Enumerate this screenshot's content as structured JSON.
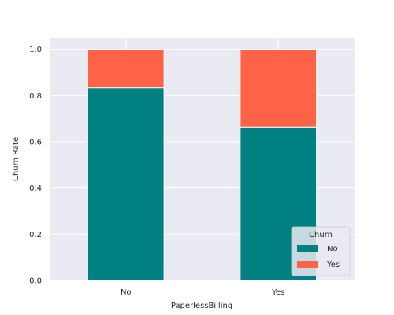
{
  "chart_data": {
    "type": "bar",
    "stacked": true,
    "categories": [
      "No",
      "Yes"
    ],
    "series": [
      {
        "name": "No",
        "values": [
          0.833,
          0.664
        ],
        "color": "#008080"
      },
      {
        "name": "Yes",
        "values": [
          0.167,
          0.336
        ],
        "color": "#FF6347"
      }
    ],
    "title": "",
    "xlabel": "PaperlessBilling",
    "ylabel": "Churn Rate",
    "ylim": [
      0,
      1.05
    ],
    "yticks": [
      "0.0",
      "0.2",
      "0.4",
      "0.6",
      "0.8",
      "1.0"
    ],
    "grid": true,
    "legend": {
      "title": "Churn",
      "placement": "bottom-right"
    },
    "colors": {
      "background": "#EAEAF2",
      "grid": "#FFFFFF"
    }
  }
}
